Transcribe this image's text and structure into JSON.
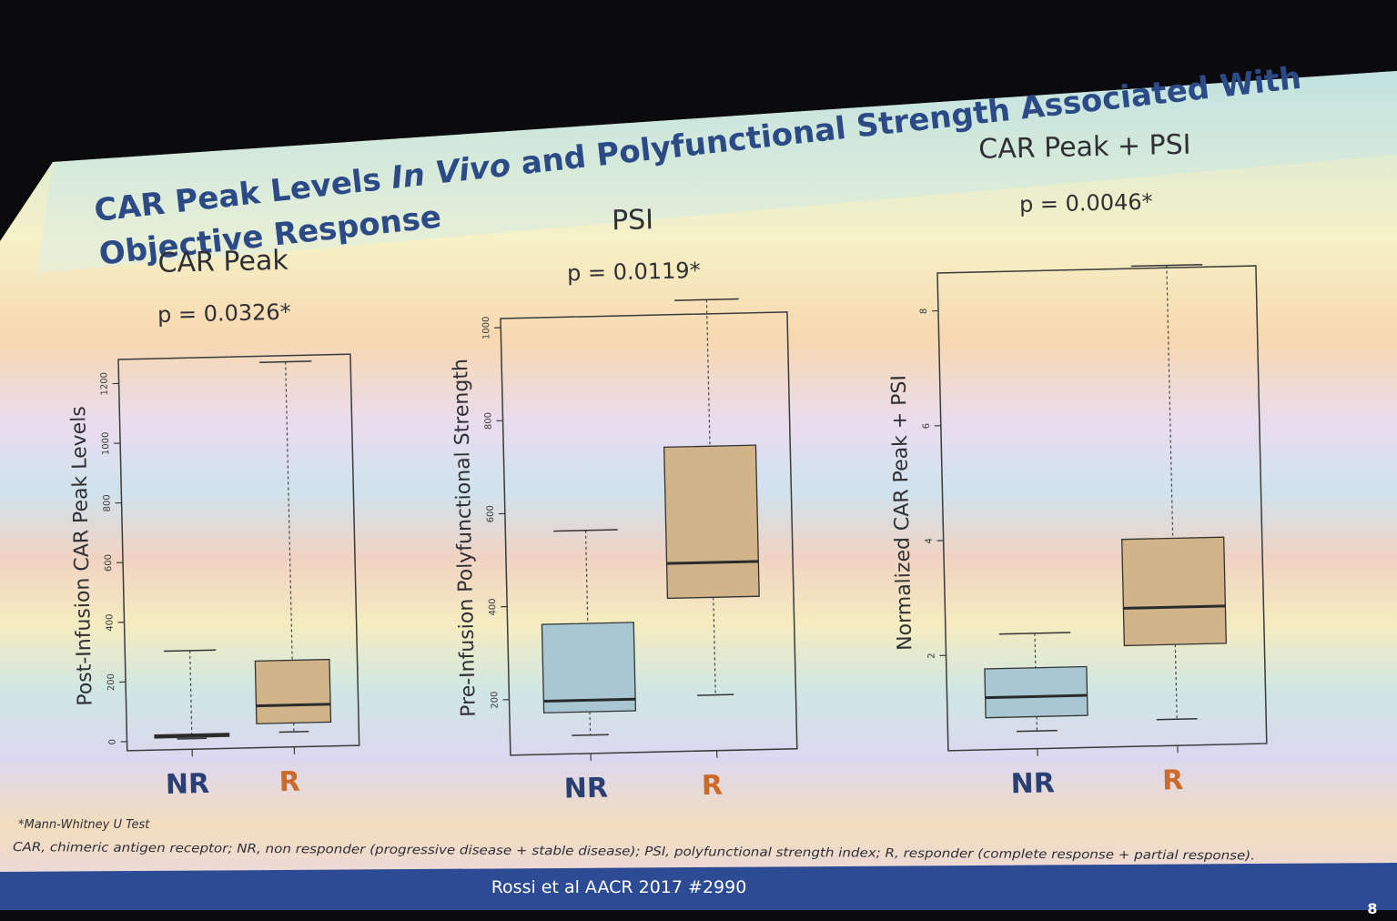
{
  "slide": {
    "title_line1_a": "CAR Peak Levels ",
    "title_line1_b": "In Vivo",
    "title_line1_c": " and Polyfunctional Strength Associated With",
    "title_line2": "Objective Response",
    "footnote_test": "*Mann-Whitney U Test",
    "footnote_abbrev": "CAR, chimeric antigen receptor; NR, non responder (progressive disease + stable disease); PSI, polyfunctional strength index; R, responder (complete response + partial response).",
    "citation": "Rossi et al AACR 2017 #2990",
    "page_number": "8",
    "colors": {
      "title": "#2b4a86",
      "nr_box": "#a9c7d3",
      "r_box": "#d2b48b",
      "nr_label": "#2a3f73",
      "r_label": "#cc6a2a",
      "footer_bar": "#2d4a94"
    }
  },
  "chart_data": [
    {
      "type": "box",
      "title": "CAR Peak",
      "subtitle": "p = 0.0326*",
      "ylabel": "Post-Infusion CAR Peak Levels",
      "ylim": [
        0,
        1250
      ],
      "yticks": [
        0,
        200,
        400,
        600,
        800,
        1000,
        1200
      ],
      "categories": [
        "NR",
        "R"
      ],
      "boxes": [
        {
          "category": "NR",
          "min": 5,
          "q1": 10,
          "median": 15,
          "q3": 20,
          "max": 300
        },
        {
          "category": "R",
          "min": 20,
          "q1": 50,
          "median": 110,
          "q3": 260,
          "max": 1260
        }
      ]
    },
    {
      "type": "box",
      "title": "PSI",
      "subtitle": "p = 0.0119*",
      "ylabel": "Pre-Infusion Polyfunctional Strength",
      "ylim": [
        100,
        1000
      ],
      "yticks": [
        200,
        400,
        600,
        800,
        1000
      ],
      "categories": [
        "NR",
        "R"
      ],
      "boxes": [
        {
          "category": "NR",
          "min": 120,
          "q1": 170,
          "median": 195,
          "q3": 360,
          "max": 560
        },
        {
          "category": "R",
          "min": 200,
          "q1": 410,
          "median": 485,
          "q3": 735,
          "max": 1050
        }
      ]
    },
    {
      "type": "box",
      "title": "CAR Peak + PSI",
      "subtitle": "p = 0.0046*",
      "ylabel": "Normalized CAR Peak + PSI",
      "ylim": [
        0.5,
        8.5
      ],
      "yticks": [
        2,
        4,
        6,
        8
      ],
      "categories": [
        "NR",
        "R"
      ],
      "boxes": [
        {
          "category": "NR",
          "min": 0.65,
          "q1": 0.9,
          "median": 1.25,
          "q3": 1.75,
          "max": 2.35
        },
        {
          "category": "R",
          "min": 0.8,
          "q1": 2.1,
          "median": 2.75,
          "q3": 3.95,
          "max": 8.7
        }
      ]
    }
  ]
}
